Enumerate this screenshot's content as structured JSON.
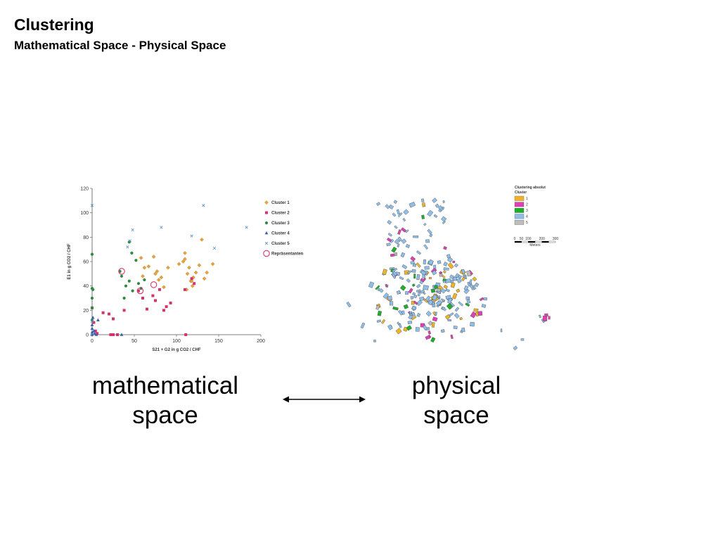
{
  "slide": {
    "title": "Clustering",
    "subtitle": "Mathematical Space - Physical Space",
    "caption_left_line1": "mathematical",
    "caption_left_line2": "space",
    "caption_right_line1": "physical",
    "caption_right_line2": "space"
  },
  "chart_data": [
    {
      "type": "scatter",
      "title": "",
      "xlabel": "S21 + G2 in g CO2 / CHF",
      "ylabel": "E1 in g CO2 / CHF",
      "xlim": [
        0,
        200
      ],
      "ylim": [
        0,
        120
      ],
      "xticks": [
        0,
        50,
        100,
        150,
        200
      ],
      "yticks": [
        0,
        20,
        40,
        60,
        80,
        100,
        120
      ],
      "grid": false,
      "legend_position": "right",
      "series": [
        {
          "name": "Cluster 1",
          "marker": "diamond",
          "color": "#e8a33a",
          "points": [
            [
              58,
              63
            ],
            [
              62,
              55
            ],
            [
              60,
              48
            ],
            [
              67,
              56
            ],
            [
              73,
              64
            ],
            [
              75,
              50
            ],
            [
              77,
              52
            ],
            [
              79,
              45
            ],
            [
              82,
              47
            ],
            [
              85,
              39
            ],
            [
              90,
              55
            ],
            [
              103,
              58
            ],
            [
              108,
              60
            ],
            [
              112,
              37
            ],
            [
              110,
              62
            ],
            [
              113,
              50
            ],
            [
              117,
              44
            ],
            [
              119,
              40
            ],
            [
              120,
              47
            ],
            [
              123,
              51
            ],
            [
              127,
              57
            ],
            [
              130,
              78
            ],
            [
              133,
              46
            ],
            [
              136,
              51
            ],
            [
              143,
              58
            ],
            [
              110,
              67
            ],
            [
              115,
              55
            ],
            [
              118,
              44
            ]
          ]
        },
        {
          "name": "Cluster 2",
          "marker": "square",
          "color": "#d6336c",
          "points": [
            [
              13,
              18
            ],
            [
              20,
              17
            ],
            [
              25,
              13
            ],
            [
              30,
              0
            ],
            [
              38,
              20
            ],
            [
              55,
              36
            ],
            [
              60,
              30
            ],
            [
              65,
              21
            ],
            [
              72,
              32
            ],
            [
              75,
              28
            ],
            [
              80,
              37
            ],
            [
              85,
              20
            ],
            [
              88,
              23
            ],
            [
              93,
              26
            ],
            [
              110,
              37
            ],
            [
              111,
              0
            ],
            [
              118,
              46
            ],
            [
              121,
              42
            ],
            [
              0,
              22
            ],
            [
              2,
              10
            ],
            [
              4,
              3
            ],
            [
              6,
              1
            ],
            [
              22,
              0
            ],
            [
              25,
              0
            ]
          ]
        },
        {
          "name": "Cluster 3",
          "marker": "circle",
          "color": "#2e8b3e",
          "points": [
            [
              0,
              66
            ],
            [
              0,
              38
            ],
            [
              0,
              30
            ],
            [
              0,
              22
            ],
            [
              0,
              12
            ],
            [
              33,
              52
            ],
            [
              35,
              48
            ],
            [
              38,
              30
            ],
            [
              40,
              40
            ],
            [
              44,
              44
            ],
            [
              47,
              67
            ],
            [
              48,
              36
            ],
            [
              52,
              61
            ],
            [
              55,
              42
            ],
            [
              58,
              38
            ],
            [
              62,
              45
            ],
            [
              44,
              76
            ],
            [
              1,
              37
            ]
          ]
        },
        {
          "name": "Cluster 4",
          "marker": "triangle",
          "color": "#3a5fa8",
          "points": [
            [
              0,
              0
            ],
            [
              0,
              2
            ],
            [
              0,
              5
            ],
            [
              0,
              8
            ],
            [
              1,
              14
            ],
            [
              2,
              3
            ],
            [
              3,
              1
            ],
            [
              5,
              0
            ],
            [
              7,
              12
            ],
            [
              35,
              0
            ]
          ]
        },
        {
          "name": "Cluster 5",
          "marker": "x",
          "color": "#4a8ec8",
          "points": [
            [
              0,
              106
            ],
            [
              0,
              11
            ],
            [
              42,
              72
            ],
            [
              45,
              77
            ],
            [
              48,
              86
            ],
            [
              82,
              88
            ],
            [
              118,
              81
            ],
            [
              132,
              106
            ],
            [
              145,
              71
            ],
            [
              183,
              88
            ]
          ]
        },
        {
          "name": "Repräsentanten",
          "marker": "ring",
          "color": "#d6336c",
          "points": [
            [
              35,
              52
            ],
            [
              57,
              36
            ],
            [
              73,
              41
            ]
          ]
        }
      ]
    },
    {
      "type": "map",
      "title": "Clustering absolut",
      "legend_title": "Cluster",
      "legend": [
        {
          "label": "1",
          "color": "#f0b429"
        },
        {
          "label": "2",
          "color": "#e040b4"
        },
        {
          "label": "3",
          "color": "#1fae2a"
        },
        {
          "label": "4",
          "color": "#8fbfe8"
        },
        {
          "label": "5",
          "color": "#bdbdbd"
        }
      ],
      "scale_ticks": [
        "0",
        "50",
        "100",
        "200",
        "300"
      ],
      "scale_unit": "Meters"
    }
  ]
}
